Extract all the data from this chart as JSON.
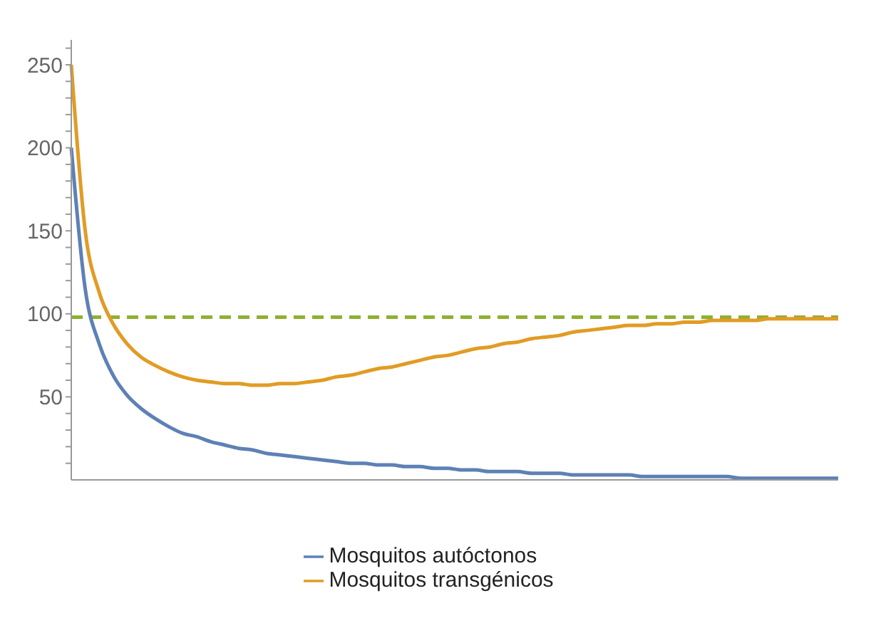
{
  "chart_data": {
    "type": "line",
    "categories": [
      null,
      null,
      null,
      null,
      null,
      null,
      null,
      null,
      null,
      null,
      null,
      null,
      null,
      null,
      null,
      null,
      null,
      null,
      null,
      null,
      null,
      null,
      null,
      null,
      null,
      null,
      null,
      null,
      null,
      null,
      null,
      null,
      null,
      null,
      null,
      null,
      null,
      null,
      null,
      null,
      null,
      null,
      null,
      null,
      null,
      null,
      null,
      null,
      null,
      null,
      null,
      null,
      null,
      null,
      null,
      null
    ],
    "series": [
      {
        "name": "Mosquitos autóctonos",
        "color": "#5e81b5",
        "values": [
          200,
          115,
          82,
          63,
          51,
          43,
          37,
          32,
          28,
          26,
          23,
          21,
          19,
          18,
          16,
          15,
          14,
          13,
          12,
          11,
          10,
          10,
          9,
          9,
          8,
          8,
          7,
          7,
          6,
          6,
          5,
          5,
          5,
          4,
          4,
          4,
          3,
          3,
          3,
          3,
          3,
          2,
          2,
          2,
          2,
          2,
          2,
          2,
          1,
          1,
          1,
          1,
          1,
          1,
          1,
          1
        ]
      },
      {
        "name": "Mosquitos transgénicos",
        "color": "#e19c24",
        "values": [
          250,
          150,
          113,
          94,
          82,
          74,
          69,
          65,
          62,
          60,
          59,
          58,
          58,
          57,
          57,
          58,
          58,
          59,
          60,
          62,
          63,
          65,
          67,
          68,
          70,
          72,
          74,
          75,
          77,
          79,
          80,
          82,
          83,
          85,
          86,
          87,
          89,
          90,
          91,
          92,
          93,
          93,
          94,
          94,
          95,
          95,
          96,
          96,
          96,
          96,
          97,
          97,
          97,
          97,
          97,
          97
        ]
      }
    ],
    "ylim": [
      0,
      265
    ],
    "yticks": [
      {
        "value": 10,
        "label": null
      },
      {
        "value": 20,
        "label": null
      },
      {
        "value": 30,
        "label": null
      },
      {
        "value": 40,
        "label": null
      },
      50,
      {
        "value": 60,
        "label": null
      },
      {
        "value": 70,
        "label": null
      },
      {
        "value": 80,
        "label": null
      },
      {
        "value": 90,
        "label": null
      },
      100,
      {
        "value": 110,
        "label": null
      },
      {
        "value": 120,
        "label": null
      },
      {
        "value": 130,
        "label": null
      },
      {
        "value": 140,
        "label": null
      },
      150,
      {
        "value": 160,
        "label": null
      },
      {
        "value": 170,
        "label": null
      },
      {
        "value": 180,
        "label": null
      },
      {
        "value": 190,
        "label": null
      },
      200,
      {
        "value": 210,
        "label": null
      },
      {
        "value": 220,
        "label": null
      },
      {
        "value": 230,
        "label": null
      },
      {
        "value": 240,
        "label": null
      },
      250,
      {
        "value": 260,
        "label": null
      }
    ],
    "ref_lines": [
      {
        "axis": "y",
        "value": 98,
        "color": "#8fb032",
        "line_style": "dashed"
      }
    ],
    "tick_labels": "y",
    "legend": "bottom",
    "marker": "none",
    "line_style": "solid",
    "grid": false
  }
}
